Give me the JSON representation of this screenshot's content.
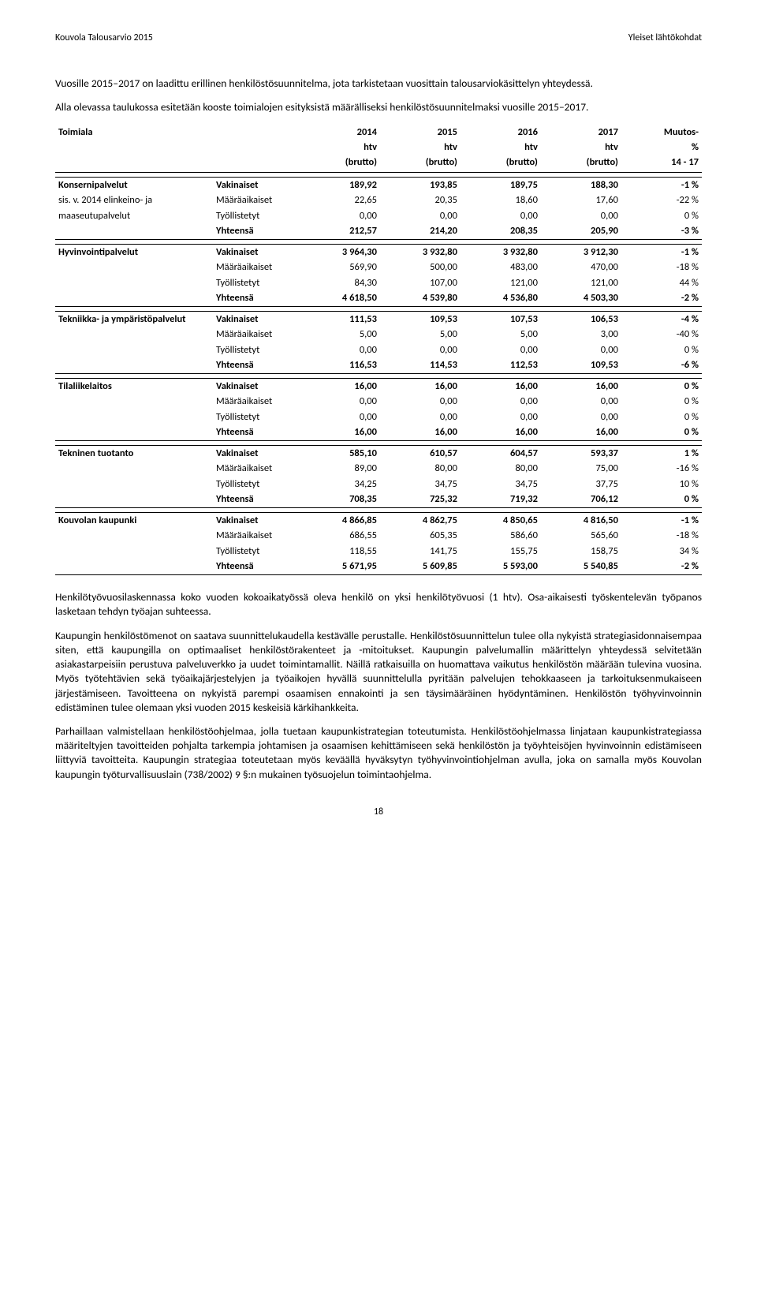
{
  "header": {
    "left": "Kouvola Talousarvio 2015",
    "right": "Yleiset lähtökohdat"
  },
  "intro_paras": [
    "Vuosille 2015–2017 on laadittu erillinen henkilöstösuunnitelma, jota tarkistetaan vuosittain talousarviokäsittelyn yhteydessä.",
    "Alla olevassa taulukossa esitetään kooste toimialojen esityksistä määrälliseksi henkilöstösuunnitelmaksi vuosille 2015–2017."
  ],
  "table": {
    "header": {
      "label": "Toimiala",
      "years": [
        "2014",
        "2015",
        "2016",
        "2017"
      ],
      "units": [
        "htv",
        "htv",
        "htv",
        "htv"
      ],
      "brutto": [
        "(brutto)",
        "(brutto)",
        "(brutto)",
        "(brutto)"
      ],
      "change_label": "Muutos-",
      "change_unit": "%",
      "change_range": "14 - 17"
    },
    "sections": [
      {
        "name": "Konsernipalvelut",
        "sub": "sis. v. 2014 elinkeino- ja",
        "sub2": "maaseutupalvelut",
        "rows": [
          {
            "type": "Vakinaiset",
            "v": [
              "189,92",
              "193,85",
              "189,75",
              "188,30",
              "-1 %"
            ]
          },
          {
            "type": "Määräaikaiset",
            "v": [
              "22,65",
              "20,35",
              "18,60",
              "17,60",
              "-22 %"
            ]
          },
          {
            "type": "Työllistetyt",
            "v": [
              "0,00",
              "0,00",
              "0,00",
              "0,00",
              "0 %"
            ]
          },
          {
            "type": "Yhteensä",
            "v": [
              "212,57",
              "214,20",
              "208,35",
              "205,90",
              "-3 %"
            ],
            "yht": true
          }
        ]
      },
      {
        "name": "Hyvinvointipalvelut",
        "rows": [
          {
            "type": "Vakinaiset",
            "v": [
              "3 964,30",
              "3 932,80",
              "3 932,80",
              "3 912,30",
              "-1 %"
            ]
          },
          {
            "type": "Määräaikaiset",
            "v": [
              "569,90",
              "500,00",
              "483,00",
              "470,00",
              "-18 %"
            ]
          },
          {
            "type": "Työllistetyt",
            "v": [
              "84,30",
              "107,00",
              "121,00",
              "121,00",
              "44 %"
            ]
          },
          {
            "type": "Yhteensä",
            "v": [
              "4 618,50",
              "4 539,80",
              "4 536,80",
              "4 503,30",
              "-2 %"
            ],
            "yht": true
          }
        ]
      },
      {
        "name": "Tekniikka- ja ympäristöpalvelut",
        "rows": [
          {
            "type": "Vakinaiset",
            "v": [
              "111,53",
              "109,53",
              "107,53",
              "106,53",
              "-4 %"
            ]
          },
          {
            "type": "Määräaikaiset",
            "v": [
              "5,00",
              "5,00",
              "5,00",
              "3,00",
              "-40 %"
            ]
          },
          {
            "type": "Työllistetyt",
            "v": [
              "0,00",
              "0,00",
              "0,00",
              "0,00",
              "0 %"
            ]
          },
          {
            "type": "Yhteensä",
            "v": [
              "116,53",
              "114,53",
              "112,53",
              "109,53",
              "-6 %"
            ],
            "yht": true
          }
        ]
      },
      {
        "name": "Tilaliikelaitos",
        "rows": [
          {
            "type": "Vakinaiset",
            "v": [
              "16,00",
              "16,00",
              "16,00",
              "16,00",
              "0 %"
            ]
          },
          {
            "type": "Määräaikaiset",
            "v": [
              "0,00",
              "0,00",
              "0,00",
              "0,00",
              "0 %"
            ]
          },
          {
            "type": "Työllistetyt",
            "v": [
              "0,00",
              "0,00",
              "0,00",
              "0,00",
              "0 %"
            ]
          },
          {
            "type": "Yhteensä",
            "v": [
              "16,00",
              "16,00",
              "16,00",
              "16,00",
              "0 %"
            ],
            "yht": true
          }
        ]
      },
      {
        "name": "Tekninen tuotanto",
        "rows": [
          {
            "type": "Vakinaiset",
            "v": [
              "585,10",
              "610,57",
              "604,57",
              "593,37",
              "1 %"
            ]
          },
          {
            "type": "Määräaikaiset",
            "v": [
              "89,00",
              "80,00",
              "80,00",
              "75,00",
              "-16 %"
            ]
          },
          {
            "type": "Työllistetyt",
            "v": [
              "34,25",
              "34,75",
              "34,75",
              "37,75",
              "10 %"
            ]
          },
          {
            "type": "Yhteensä",
            "v": [
              "708,35",
              "725,32",
              "719,32",
              "706,12",
              "0 %"
            ],
            "yht": true
          }
        ]
      },
      {
        "name": "Kouvolan kaupunki",
        "rows": [
          {
            "type": "Vakinaiset",
            "v": [
              "4 866,85",
              "4 862,75",
              "4 850,65",
              "4 816,50",
              "-1 %"
            ]
          },
          {
            "type": "Määräaikaiset",
            "v": [
              "686,55",
              "605,35",
              "586,60",
              "565,60",
              "-18 %"
            ]
          },
          {
            "type": "Työllistetyt",
            "v": [
              "118,55",
              "141,75",
              "155,75",
              "158,75",
              "34 %"
            ]
          },
          {
            "type": "Yhteensä",
            "v": [
              "5 671,95",
              "5 609,85",
              "5 593,00",
              "5 540,85",
              "-2 %"
            ],
            "yht": true
          }
        ]
      }
    ]
  },
  "post_paras": [
    "Henkilötyövuosilaskennassa koko vuoden kokoaikatyössä oleva henkilö on yksi henkilötyövuosi (1 htv). Osa-aikaisesti työskentelevän työpanos lasketaan tehdyn työajan suhteessa.",
    "Kaupungin henkilöstömenot on saatava suunnittelukaudella kestävälle perustalle. Henkilöstösuunnittelun tulee olla nykyistä strategiasidonnaisempaa siten, että kaupungilla on optimaaliset henkilöstörakenteet ja -mitoitukset. Kaupungin palvelumallin määrittelyn yhteydessä selvitetään asiakastarpeisiin perustuva palveluverkko ja uudet toimintamallit. Näillä ratkaisuilla on huomattava vaikutus henkilöstön määrään tulevina vuosina. Myös työtehtävien sekä työaikajärjestelyjen ja työaikojen hyvällä suunnittelulla pyritään palvelujen tehokkaaseen ja tarkoituksenmukaiseen järjestämiseen. Tavoitteena on nykyistä parempi osaamisen ennakointi ja sen täysimääräinen hyödyntäminen. Henkilöstön työhyvinvoinnin edistäminen tulee olemaan yksi vuoden 2015 keskeisiä kärkihankkeita.",
    "Parhaillaan valmistellaan henkilöstöohjelmaa, jolla tuetaan kaupunkistrategian toteutumista. Henkilöstöohjelmassa linjataan kaupunkistrategiassa määriteltyjen tavoitteiden pohjalta tarkempia johtamisen ja osaamisen kehittämiseen sekä henkilöstön ja työyhteisöjen hyvinvoinnin edistämiseen liittyviä tavoitteita. Kaupungin strategiaa toteutetaan myös keväällä hyväksytyn työhyvinvointiohjelman avulla, joka on samalla myös Kouvolan kaupungin työturvallisuuslain (738/2002) 9 §:n mukainen työsuojelun toimintaohjelma."
  ],
  "page_number": "18"
}
